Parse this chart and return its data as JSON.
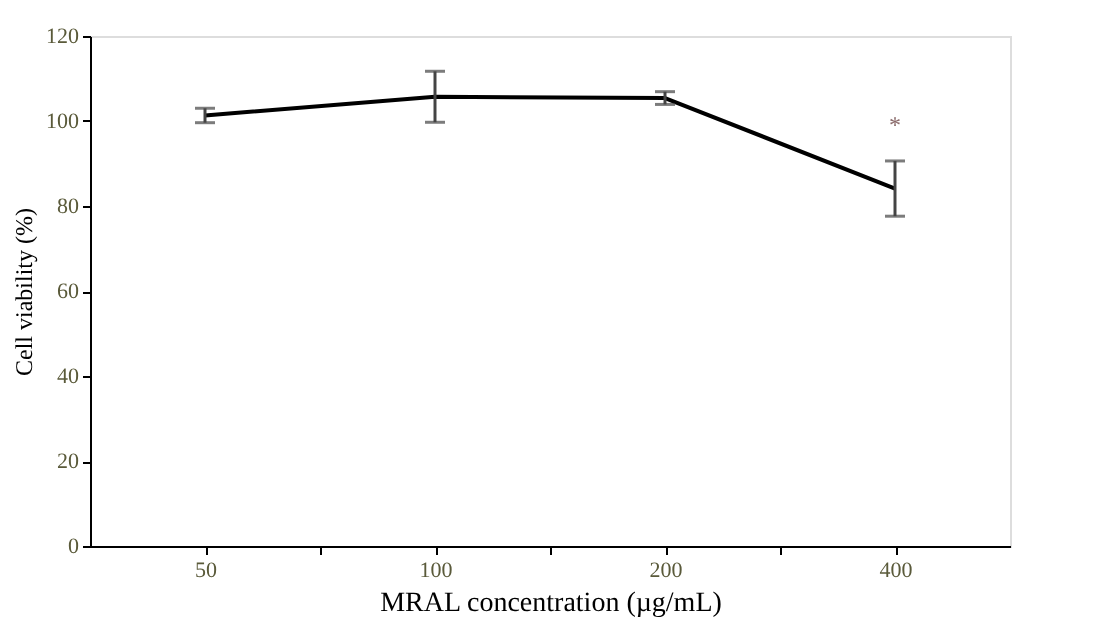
{
  "chart_data": {
    "type": "line",
    "xlabel": "MRAL concentration (µg/mL)",
    "ylabel": "Cell viability (%)",
    "categories": [
      "50",
      "100",
      "200",
      "400"
    ],
    "series": [
      {
        "color": "#000000",
        "values": [
          101.3,
          105.7,
          105.4,
          84.1
        ],
        "errors": [
          1.7,
          6,
          1.5,
          6.5
        ]
      }
    ],
    "ylim": [
      0,
      120
    ],
    "yticks": [
      0,
      20,
      40,
      60,
      80,
      100,
      120
    ],
    "grid": false,
    "marker": "none",
    "line_style": "solid",
    "annotations": [
      "*"
    ]
  }
}
